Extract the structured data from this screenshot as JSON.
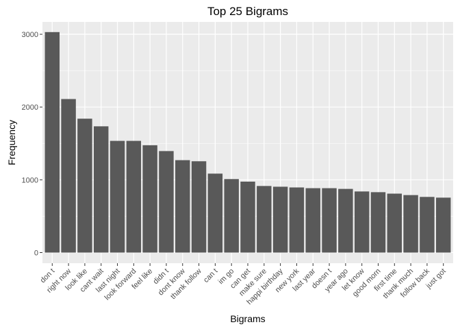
{
  "chart_data": {
    "type": "bar",
    "title": "Top 25 Bigrams",
    "xlabel": "Bigrams",
    "ylabel": "Frequency",
    "ylim": [
      0,
      3200
    ],
    "yticks": [
      0,
      1000,
      2000,
      3000
    ],
    "grid": true,
    "colors": {
      "bar": "#595959",
      "panel": "#ebebeb",
      "grid": "#ffffff"
    },
    "categories": [
      "don t",
      "right now",
      "look like",
      "cant wait",
      "last night",
      "look forward",
      "feel like",
      "didn t",
      "dont know",
      "thank follow",
      "can t",
      "im go",
      "can get",
      "make sure",
      "happi birthday",
      "new york",
      "last year",
      "doesn t",
      "year ago",
      "let know",
      "good morn",
      "first time",
      "thank much",
      "follow back",
      "just got"
    ],
    "values": [
      3030,
      2110,
      1840,
      1735,
      1535,
      1535,
      1475,
      1395,
      1270,
      1255,
      1085,
      1010,
      975,
      915,
      905,
      895,
      885,
      885,
      875,
      840,
      830,
      810,
      790,
      765,
      755
    ]
  }
}
